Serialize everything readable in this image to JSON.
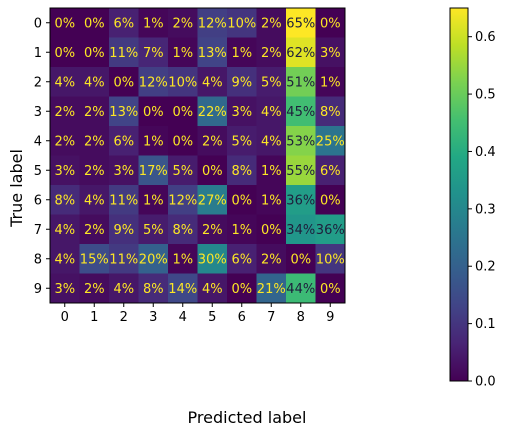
{
  "chart_data": {
    "type": "heatmap",
    "xlabel": "Predicted label",
    "ylabel": "True label",
    "x_categories": [
      "0",
      "1",
      "2",
      "3",
      "4",
      "5",
      "6",
      "7",
      "8",
      "9"
    ],
    "y_categories": [
      "0",
      "1",
      "2",
      "3",
      "4",
      "5",
      "6",
      "7",
      "8",
      "9"
    ],
    "value_format": "percent",
    "values": [
      [
        0.0,
        0.0,
        0.06,
        0.01,
        0.02,
        0.12,
        0.1,
        0.02,
        0.65,
        0.0
      ],
      [
        0.0,
        0.0,
        0.11,
        0.07,
        0.01,
        0.13,
        0.01,
        0.02,
        0.62,
        0.03
      ],
      [
        0.04,
        0.04,
        0.0,
        0.12,
        0.1,
        0.04,
        0.09,
        0.05,
        0.51,
        0.01
      ],
      [
        0.02,
        0.02,
        0.13,
        0.0,
        0.0,
        0.22,
        0.03,
        0.04,
        0.45,
        0.08
      ],
      [
        0.02,
        0.02,
        0.06,
        0.01,
        0.0,
        0.02,
        0.05,
        0.04,
        0.53,
        0.25
      ],
      [
        0.03,
        0.02,
        0.03,
        0.17,
        0.05,
        0.0,
        0.08,
        0.01,
        0.55,
        0.06
      ],
      [
        0.08,
        0.04,
        0.11,
        0.01,
        0.12,
        0.27,
        0.0,
        0.01,
        0.36,
        0.0
      ],
      [
        0.04,
        0.02,
        0.09,
        0.05,
        0.08,
        0.02,
        0.01,
        0.0,
        0.34,
        0.36
      ],
      [
        0.04,
        0.15,
        0.11,
        0.2,
        0.01,
        0.3,
        0.06,
        0.02,
        0.0,
        0.1
      ],
      [
        0.03,
        0.02,
        0.04,
        0.08,
        0.14,
        0.04,
        0.0,
        0.21,
        0.44,
        0.0
      ]
    ],
    "colormap": "viridis",
    "colorbar": {
      "range": [
        0.0,
        0.65
      ],
      "ticks": [
        0.0,
        0.1,
        0.2,
        0.3,
        0.4,
        0.5,
        0.6
      ],
      "tick_labels": [
        "0.0",
        "0.1",
        "0.2",
        "0.3",
        "0.4",
        "0.5",
        "0.6"
      ]
    },
    "text_colors": {
      "dark_cells": "#fde725",
      "light_cells": "#1e1e3c"
    }
  }
}
